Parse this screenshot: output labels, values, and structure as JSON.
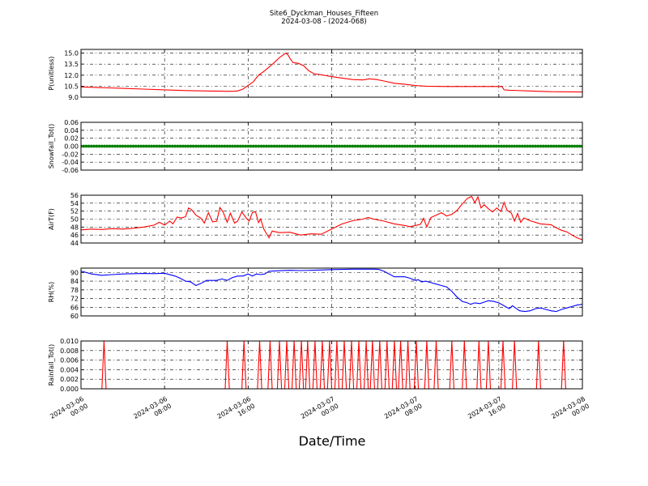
{
  "figure": {
    "title_line1": "Site6_Dyckman_Houses_Fifteen",
    "title_line2": "2024-03-08 - (2024-068)",
    "xlabel": "Date/Time"
  },
  "chart_data": {
    "type": "line",
    "x_axis": {
      "range": [
        "2024-03-06 00:00",
        "2024-03-08 00:00"
      ],
      "tick_labels": [
        [
          "2024-03-06",
          "00:00"
        ],
        [
          "2024-03-06",
          "08:00"
        ],
        [
          "2024-03-06",
          "16:00"
        ],
        [
          "2024-03-07",
          "00:00"
        ],
        [
          "2024-03-07",
          "08:00"
        ],
        [
          "2024-03-07",
          "16:00"
        ],
        [
          "2024-03-08",
          "00:00"
        ]
      ]
    },
    "grid": true,
    "panels": [
      {
        "ylabel": "P(unitless)",
        "ylim": [
          9.0,
          15.5
        ],
        "yticks": [
          "9.0",
          "10.5",
          "12.0",
          "13.5",
          "15.0"
        ],
        "color": "#ff0000",
        "style": "line",
        "points": [
          [
            0,
            10.4
          ],
          [
            2,
            10.3
          ],
          [
            4,
            10.2
          ],
          [
            6,
            10.1
          ],
          [
            8,
            10.0
          ],
          [
            10,
            9.9
          ],
          [
            12,
            9.85
          ],
          [
            14,
            9.8
          ],
          [
            14.5,
            9.8
          ],
          [
            15,
            9.85
          ],
          [
            15.5,
            10.1
          ],
          [
            16,
            10.6
          ],
          [
            16.5,
            11.1
          ],
          [
            17,
            12.0
          ],
          [
            17.5,
            12.5
          ],
          [
            18,
            13.1
          ],
          [
            18.5,
            13.7
          ],
          [
            19,
            14.4
          ],
          [
            19.4,
            14.8
          ],
          [
            19.6,
            15.0
          ],
          [
            19.8,
            14.8
          ],
          [
            20,
            14.3
          ],
          [
            20.3,
            13.7
          ],
          [
            20.8,
            13.6
          ],
          [
            21.3,
            13.3
          ],
          [
            21.8,
            12.6
          ],
          [
            22.3,
            12.2
          ],
          [
            23,
            12.05
          ],
          [
            24,
            11.8
          ],
          [
            25,
            11.6
          ],
          [
            26,
            11.4
          ],
          [
            27,
            11.35
          ],
          [
            27.6,
            11.5
          ],
          [
            28.3,
            11.4
          ],
          [
            29,
            11.2
          ],
          [
            30,
            10.9
          ],
          [
            31,
            10.75
          ],
          [
            32,
            10.6
          ],
          [
            33,
            10.5
          ],
          [
            35,
            10.45
          ],
          [
            37,
            10.45
          ],
          [
            40,
            10.45
          ],
          [
            40.3,
            10.45
          ],
          [
            40.5,
            10.0
          ],
          [
            41,
            9.95
          ],
          [
            43,
            9.85
          ],
          [
            45,
            9.75
          ],
          [
            48,
            9.7
          ]
        ]
      },
      {
        "ylabel": "Snowfall_Tot()",
        "ylim": [
          -0.06,
          0.06
        ],
        "yticks": [
          "-0.06",
          "-0.04",
          "-0.02",
          "0.00",
          "0.02",
          "0.04",
          "0.06"
        ],
        "color": "#008000",
        "style": "markers",
        "constant_value": 0.0,
        "x_start": 0,
        "x_end": 48,
        "x_step": 0.25
      },
      {
        "ylabel": "AirT(F)",
        "ylim": [
          44,
          56
        ],
        "yticks": [
          "44",
          "46",
          "48",
          "50",
          "52",
          "54",
          "56"
        ],
        "color": "#ff0000",
        "style": "line",
        "points": [
          [
            0,
            47.3
          ],
          [
            1,
            47.5
          ],
          [
            2,
            47.4
          ],
          [
            3,
            47.6
          ],
          [
            4,
            47.5
          ],
          [
            5,
            47.7
          ],
          [
            6,
            48.0
          ],
          [
            7,
            48.5
          ],
          [
            7.5,
            49.2
          ],
          [
            8,
            48.5
          ],
          [
            8.5,
            49.5
          ],
          [
            8.8,
            48.8
          ],
          [
            9.2,
            50.5
          ],
          [
            9.6,
            50.3
          ],
          [
            10,
            50.6
          ],
          [
            10.3,
            52.8
          ],
          [
            10.6,
            52.3
          ],
          [
            11,
            51.0
          ],
          [
            11.5,
            50.2
          ],
          [
            11.8,
            49.0
          ],
          [
            12.2,
            51.6
          ],
          [
            12.6,
            49.3
          ],
          [
            13,
            49.5
          ],
          [
            13.3,
            52.9
          ],
          [
            13.6,
            51.8
          ],
          [
            14,
            49.2
          ],
          [
            14.3,
            51.5
          ],
          [
            14.7,
            49.0
          ],
          [
            15,
            49.5
          ],
          [
            15.4,
            51.8
          ],
          [
            15.8,
            50.3
          ],
          [
            16.1,
            49.5
          ],
          [
            16.4,
            51.6
          ],
          [
            16.7,
            51.9
          ],
          [
            17,
            49.1
          ],
          [
            17.2,
            50.0
          ],
          [
            17.5,
            47.5
          ],
          [
            18,
            45.3
          ],
          [
            18.3,
            47.0
          ],
          [
            19,
            46.6
          ],
          [
            20,
            46.7
          ],
          [
            21,
            46.0
          ],
          [
            22,
            46.3
          ],
          [
            23,
            46.2
          ],
          [
            24,
            47.5
          ],
          [
            25,
            48.8
          ],
          [
            26,
            49.6
          ],
          [
            27,
            50.0
          ],
          [
            27.5,
            50.4
          ],
          [
            28,
            50.0
          ],
          [
            29,
            49.5
          ],
          [
            30,
            48.8
          ],
          [
            31,
            48.4
          ],
          [
            31.5,
            48.1
          ],
          [
            32,
            48.4
          ],
          [
            32.5,
            48.7
          ],
          [
            32.8,
            50.2
          ],
          [
            33.1,
            48.0
          ],
          [
            33.5,
            50.4
          ],
          [
            34,
            51.0
          ],
          [
            34.5,
            51.6
          ],
          [
            35,
            50.8
          ],
          [
            35.5,
            51.2
          ],
          [
            36,
            52.2
          ],
          [
            36.5,
            53.8
          ],
          [
            37,
            55.2
          ],
          [
            37.4,
            55.7
          ],
          [
            37.7,
            54.1
          ],
          [
            38,
            55.6
          ],
          [
            38.3,
            52.8
          ],
          [
            38.6,
            53.6
          ],
          [
            39,
            52.6
          ],
          [
            39.4,
            51.8
          ],
          [
            39.8,
            52.8
          ],
          [
            40.2,
            51.9
          ],
          [
            40.5,
            54.2
          ],
          [
            40.8,
            52.2
          ],
          [
            41.2,
            51.5
          ],
          [
            41.5,
            49.5
          ],
          [
            41.8,
            51.4
          ],
          [
            42.1,
            49.2
          ],
          [
            42.4,
            50.3
          ],
          [
            43,
            49.6
          ],
          [
            44,
            48.8
          ],
          [
            45,
            48.6
          ],
          [
            45.5,
            47.8
          ],
          [
            46,
            47.2
          ],
          [
            46.5,
            46.8
          ],
          [
            47,
            46.0
          ],
          [
            47.5,
            45.3
          ],
          [
            48,
            44.8
          ]
        ]
      },
      {
        "ylabel": "RH(%)",
        "ylim": [
          60,
          93
        ],
        "yticks": [
          "60",
          "66",
          "72",
          "78",
          "84",
          "90"
        ],
        "color": "#0000ff",
        "style": "line",
        "points": [
          [
            0,
            91
          ],
          [
            1,
            89
          ],
          [
            2,
            88
          ],
          [
            3,
            88.5
          ],
          [
            4,
            89
          ],
          [
            6,
            89.3
          ],
          [
            7,
            89.2
          ],
          [
            8,
            89.5
          ],
          [
            9,
            87.5
          ],
          [
            9.5,
            86
          ],
          [
            10,
            84
          ],
          [
            10.5,
            83.5
          ],
          [
            11,
            81
          ],
          [
            11.5,
            82.5
          ],
          [
            12,
            84.5
          ],
          [
            13,
            84.5
          ],
          [
            13.5,
            85.5
          ],
          [
            14,
            84.5
          ],
          [
            14.5,
            86.5
          ],
          [
            15,
            87.5
          ],
          [
            15.5,
            87.5
          ],
          [
            16,
            89
          ],
          [
            16.4,
            87.5
          ],
          [
            16.8,
            89
          ],
          [
            17.2,
            88.5
          ],
          [
            17.6,
            89
          ],
          [
            18,
            90.8
          ],
          [
            19,
            91.2
          ],
          [
            20,
            91.5
          ],
          [
            21,
            91.3
          ],
          [
            22,
            91.5
          ],
          [
            23,
            91.7
          ],
          [
            24,
            92
          ],
          [
            26,
            92.3
          ],
          [
            28,
            92.3
          ],
          [
            28.5,
            92.1
          ],
          [
            29,
            90.8
          ],
          [
            29.5,
            89
          ],
          [
            30,
            87
          ],
          [
            31,
            87
          ],
          [
            31.5,
            86
          ],
          [
            32,
            84.5
          ],
          [
            32.3,
            85
          ],
          [
            32.6,
            83.5
          ],
          [
            33,
            84
          ],
          [
            33.5,
            83
          ],
          [
            34,
            82
          ],
          [
            34.5,
            81
          ],
          [
            35,
            80
          ],
          [
            35.5,
            77
          ],
          [
            36,
            73
          ],
          [
            36.5,
            70
          ],
          [
            37,
            69
          ],
          [
            37.3,
            68
          ],
          [
            37.7,
            69
          ],
          [
            38.2,
            68.5
          ],
          [
            38.6,
            69.5
          ],
          [
            39,
            70.5
          ],
          [
            39.5,
            70
          ],
          [
            40,
            69
          ],
          [
            40.5,
            67
          ],
          [
            41,
            65
          ],
          [
            41.3,
            67
          ],
          [
            41.6,
            65.5
          ],
          [
            42,
            63.5
          ],
          [
            42.5,
            63
          ],
          [
            43,
            63.5
          ],
          [
            43.5,
            65
          ],
          [
            44,
            65.5
          ],
          [
            44.5,
            64.5
          ],
          [
            45,
            63.5
          ],
          [
            45.5,
            63
          ],
          [
            46,
            64.5
          ],
          [
            46.5,
            65.5
          ],
          [
            47,
            66.5
          ],
          [
            47.5,
            67.5
          ],
          [
            48,
            68
          ]
        ]
      },
      {
        "ylabel": "Rainfall_Tot()",
        "ylim": [
          0.0,
          0.01
        ],
        "yticks": [
          "0.000",
          "0.002",
          "0.004",
          "0.006",
          "0.008",
          "0.010"
        ],
        "color": "#ff0000",
        "style": "spikes",
        "spike_value": 0.01,
        "spike_half_width_hours": 0.2,
        "spikes_x": [
          2.2,
          14,
          15.6,
          17.1,
          18.1,
          19,
          19.7,
          20.4,
          21.1,
          21.7,
          22.4,
          23.1,
          23.8,
          24.5,
          25.2,
          25.9,
          26.6,
          27.3,
          27.9,
          28.6,
          29.3,
          30,
          30.6,
          31.3,
          32.1,
          33.1,
          34,
          35.5,
          36.7,
          38.1,
          39,
          40.4,
          41.5,
          43.8,
          46.2
        ],
        "x_start": 0,
        "x_end": 48
      }
    ]
  }
}
